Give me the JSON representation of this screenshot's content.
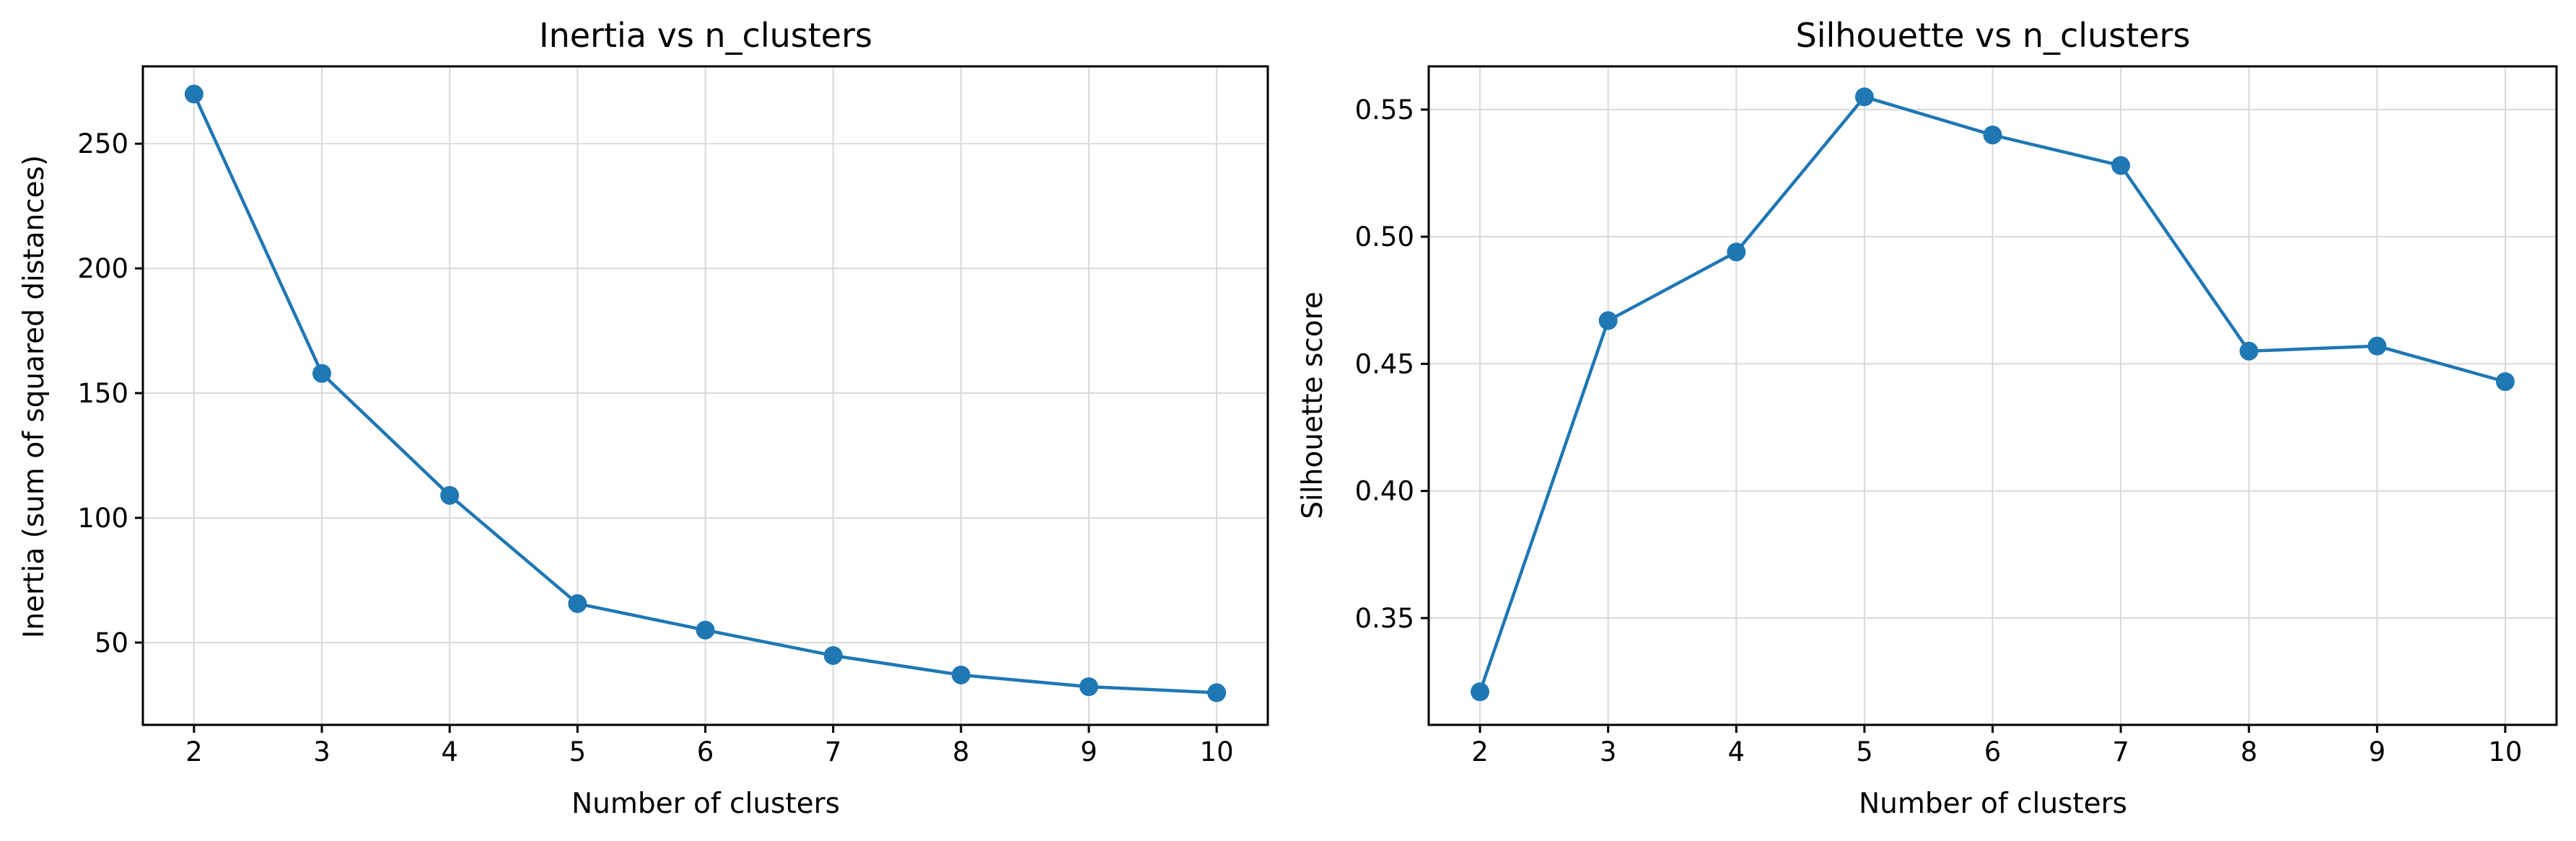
{
  "chart_data": [
    {
      "type": "line",
      "title": "Inertia vs n_clusters",
      "xlabel": "Number of clusters",
      "ylabel": "Inertia (sum of squared distances)",
      "x": [
        2,
        3,
        4,
        5,
        6,
        7,
        8,
        9,
        10
      ],
      "xlim": [
        1.6,
        10.4
      ],
      "ylim": [
        17,
        281
      ],
      "xticks": [
        2,
        3,
        4,
        5,
        6,
        7,
        8,
        9,
        10
      ],
      "yticks": [
        50,
        100,
        150,
        200,
        250
      ],
      "grid": true,
      "markers": true,
      "series": [
        {
          "values": [
            269.9,
            157.9,
            109.0,
            65.6,
            55.0,
            44.8,
            37.0,
            32.3,
            29.9
          ]
        }
      ]
    },
    {
      "type": "line",
      "title": "Silhouette vs n_clusters",
      "xlabel": "Number of clusters",
      "ylabel": "Silhouette score",
      "x": [
        2,
        3,
        4,
        5,
        6,
        7,
        8,
        9,
        10
      ],
      "xlim": [
        1.6,
        10.4
      ],
      "ylim": [
        0.308,
        0.567
      ],
      "xticks": [
        2,
        3,
        4,
        5,
        6,
        7,
        8,
        9,
        10
      ],
      "yticks": [
        0.35,
        0.4,
        0.45,
        0.5,
        0.55
      ],
      "ytick_labels": [
        "0.35",
        "0.40",
        "0.45",
        "0.50",
        "0.55"
      ],
      "grid": true,
      "markers": true,
      "series": [
        {
          "values": [
            0.321,
            0.467,
            0.494,
            0.555,
            0.54,
            0.528,
            0.455,
            0.457,
            0.443
          ]
        }
      ]
    }
  ],
  "colors": {
    "series": "#1f77b4",
    "grid": "#d9d9d9",
    "frame": "#000000"
  }
}
